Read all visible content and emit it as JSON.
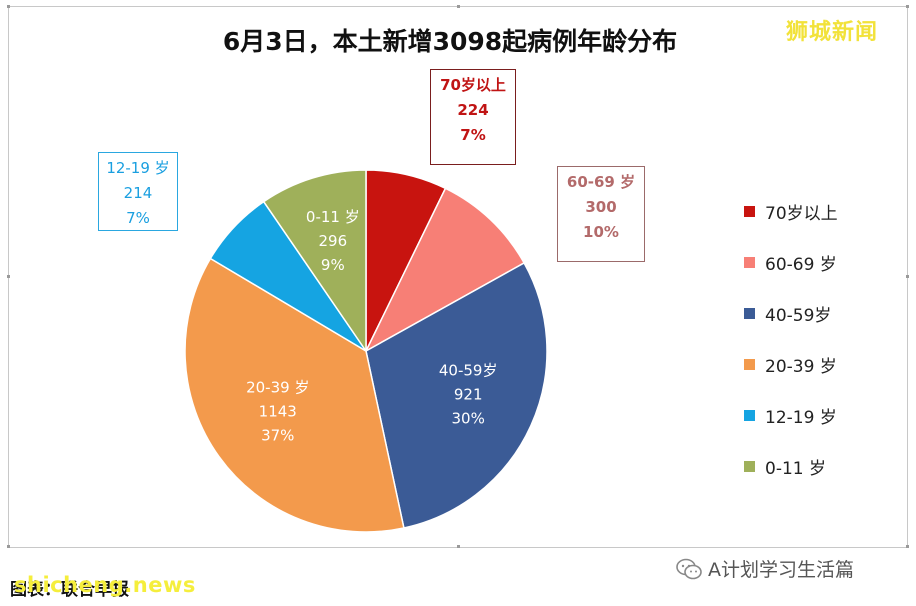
{
  "chart_data": {
    "type": "pie",
    "title": "6月3日，本土新增3098起病例年龄分布",
    "total": 3098,
    "categories": [
      "70岁以上",
      "60-69 岁",
      "40-59岁",
      "20-39 岁",
      "12-19 岁",
      "0-11 岁"
    ],
    "values": [
      224,
      300,
      921,
      1143,
      214,
      296
    ],
    "percent_labels": [
      "7%",
      "10%",
      "30%",
      "37%",
      "7%",
      "9%"
    ],
    "colors": [
      "#c8140f",
      "#f77f76",
      "#3b5b96",
      "#f39a4c",
      "#15a4e2",
      "#9fb05a"
    ],
    "label_colors": [
      "#c01414",
      "#b36a6a",
      "#ffffff",
      "#ffffff",
      "#1a9fe0",
      "#ffffff"
    ],
    "legend_position": "right"
  },
  "watermark": {
    "brand": "狮城新闻",
    "site": "shicheng.news",
    "credit": "图表：联合早报"
  },
  "footer": {
    "account": "A计划学习生活篇"
  }
}
